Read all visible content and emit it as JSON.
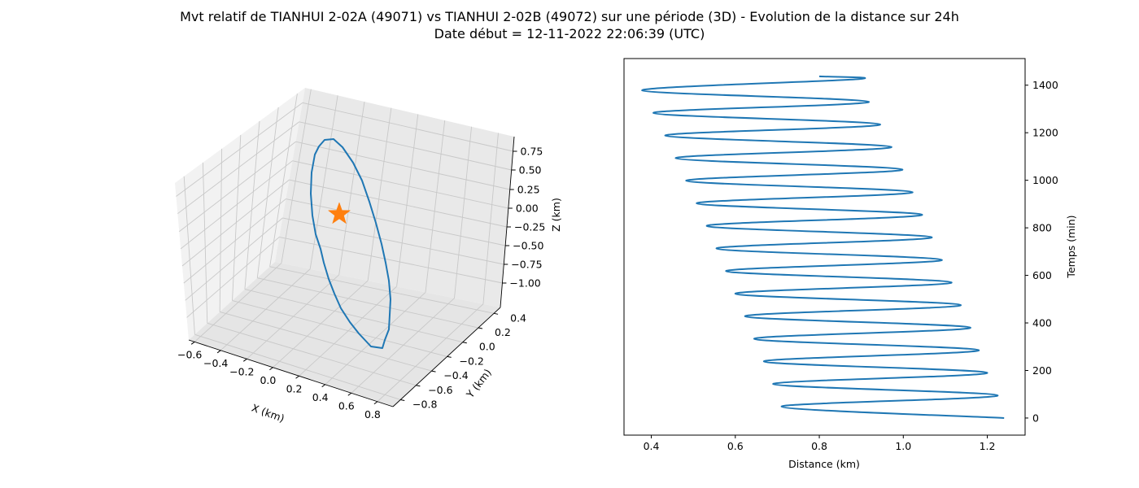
{
  "figure": {
    "title_line1": "Mvt relatif de TIANHUI 2-02A (49071) vs TIANHUI 2-02B (49072) sur une période (3D) - Evolution de la distance sur 24h",
    "title_line2": "Date début = 12-11-2022 22:06:39 (UTC)"
  },
  "chart_data": [
    {
      "type": "line",
      "subtype": "3d",
      "xlabel": "X (km)",
      "ylabel": "Y (km)",
      "zlabel": "Z (km)",
      "x_ticks": [
        "−0.6",
        "−0.4",
        "−0.2",
        "0.0",
        "0.2",
        "0.4",
        "0.6",
        "0.8"
      ],
      "y_ticks": [
        "−0.8",
        "−0.6",
        "−0.4",
        "−0.2",
        "0.0",
        "0.2",
        "0.4"
      ],
      "z_ticks": [
        "−1.00",
        "−0.75",
        "−0.50",
        "−0.25",
        "0.00",
        "0.25",
        "0.50",
        "0.75"
      ],
      "xlim": [
        -0.65,
        0.9
      ],
      "ylim": [
        -0.85,
        0.55
      ],
      "zlim": [
        -1.1,
        0.85
      ],
      "grid": true,
      "series": [
        {
          "color": "#1f77b4",
          "description_points": "closed relative orbit loop"
        }
      ],
      "marker": {
        "shape": "star",
        "color": "#ff7f0e",
        "x": 0.0,
        "y": 0.0,
        "z": 0.0
      }
    },
    {
      "type": "line",
      "xlabel": "Distance (km)",
      "ylabel": "Temps (min)",
      "xlim": [
        0.335,
        1.29
      ],
      "ylim": [
        -72,
        1512
      ],
      "x_ticks": [
        0.4,
        0.6,
        0.8,
        1.0,
        1.2
      ],
      "y_ticks": [
        0,
        200,
        400,
        600,
        800,
        1000,
        1200,
        1400
      ],
      "color": "#1f77b4",
      "grid": false,
      "series": [
        {
          "points": [
            [
              1.24,
              0
            ],
            [
              0.71,
              48
            ],
            [
              1.225,
              95
            ],
            [
              0.69,
              143
            ],
            [
              1.2,
              190
            ],
            [
              0.668,
              238
            ],
            [
              1.18,
              285
            ],
            [
              0.645,
              333
            ],
            [
              1.16,
              380
            ],
            [
              0.623,
              428
            ],
            [
              1.137,
              475
            ],
            [
              0.6,
              523
            ],
            [
              1.115,
              570
            ],
            [
              0.578,
              618
            ],
            [
              1.092,
              665
            ],
            [
              0.555,
              713
            ],
            [
              1.068,
              760
            ],
            [
              0.532,
              808
            ],
            [
              1.045,
              855
            ],
            [
              0.508,
              903
            ],
            [
              1.022,
              950
            ],
            [
              0.483,
              998
            ],
            [
              0.998,
              1045
            ],
            [
              0.458,
              1093
            ],
            [
              0.972,
              1140
            ],
            [
              0.433,
              1188
            ],
            [
              0.945,
              1235
            ],
            [
              0.405,
              1283
            ],
            [
              0.918,
              1330
            ],
            [
              0.378,
              1378
            ],
            [
              0.89,
              1425
            ],
            [
              0.8,
              1437
            ]
          ]
        }
      ]
    }
  ]
}
